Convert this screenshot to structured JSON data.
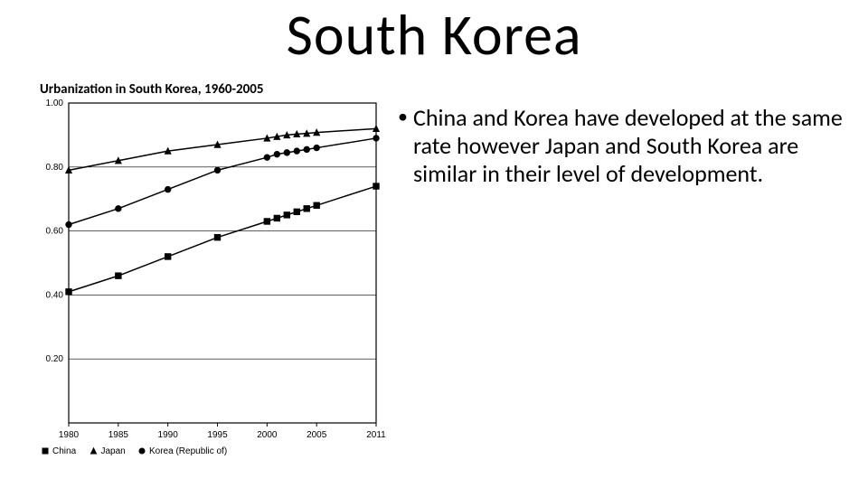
{
  "title": "South Korea",
  "chart_title": "Urbanization in South Korea, 1960-2005",
  "bullet_text": "China and Korea have developed at the same rate however Japan and South Korea are similar in their level of development.",
  "chart": {
    "type": "line",
    "background_color": "#ffffff",
    "border_color": "#000000",
    "grid_color": "#000000",
    "line_color": "#000000",
    "line_width": 1.5,
    "marker_size": 5,
    "tick_fontsize": 10,
    "xlabel": "",
    "ylabel": "",
    "xlim": [
      1980,
      2011
    ],
    "ylim": [
      0,
      1.0
    ],
    "xticks": [
      1980,
      1985,
      1990,
      1995,
      2000,
      2005,
      2011
    ],
    "yticks": [
      0.2,
      0.4,
      0.6,
      0.8,
      1.0
    ],
    "series": [
      {
        "name": "China",
        "marker": "square",
        "data": [
          {
            "x": 1980,
            "y": 0.41
          },
          {
            "x": 1985,
            "y": 0.46
          },
          {
            "x": 1990,
            "y": 0.52
          },
          {
            "x": 1995,
            "y": 0.58
          },
          {
            "x": 2000,
            "y": 0.63
          },
          {
            "x": 2001,
            "y": 0.64
          },
          {
            "x": 2002,
            "y": 0.65
          },
          {
            "x": 2003,
            "y": 0.66
          },
          {
            "x": 2004,
            "y": 0.67
          },
          {
            "x": 2005,
            "y": 0.68
          },
          {
            "x": 2011,
            "y": 0.74
          }
        ]
      },
      {
        "name": "Japan",
        "marker": "triangle",
        "data": [
          {
            "x": 1980,
            "y": 0.79
          },
          {
            "x": 1985,
            "y": 0.82
          },
          {
            "x": 1990,
            "y": 0.85
          },
          {
            "x": 1995,
            "y": 0.87
          },
          {
            "x": 2000,
            "y": 0.89
          },
          {
            "x": 2001,
            "y": 0.895
          },
          {
            "x": 2002,
            "y": 0.9
          },
          {
            "x": 2003,
            "y": 0.903
          },
          {
            "x": 2004,
            "y": 0.905
          },
          {
            "x": 2005,
            "y": 0.908
          },
          {
            "x": 2011,
            "y": 0.92
          }
        ]
      },
      {
        "name": "Korea (Republic of)",
        "marker": "circle",
        "data": [
          {
            "x": 1980,
            "y": 0.62
          },
          {
            "x": 1985,
            "y": 0.67
          },
          {
            "x": 1990,
            "y": 0.73
          },
          {
            "x": 1995,
            "y": 0.79
          },
          {
            "x": 2000,
            "y": 0.83
          },
          {
            "x": 2001,
            "y": 0.84
          },
          {
            "x": 2002,
            "y": 0.845
          },
          {
            "x": 2003,
            "y": 0.85
          },
          {
            "x": 2004,
            "y": 0.855
          },
          {
            "x": 2005,
            "y": 0.86
          },
          {
            "x": 2011,
            "y": 0.89
          }
        ]
      }
    ],
    "legend": {
      "items": [
        {
          "marker": "square",
          "label": "China"
        },
        {
          "marker": "triangle",
          "label": "Japan"
        },
        {
          "marker": "circle",
          "label": "Korea (Republic of)"
        }
      ]
    }
  }
}
